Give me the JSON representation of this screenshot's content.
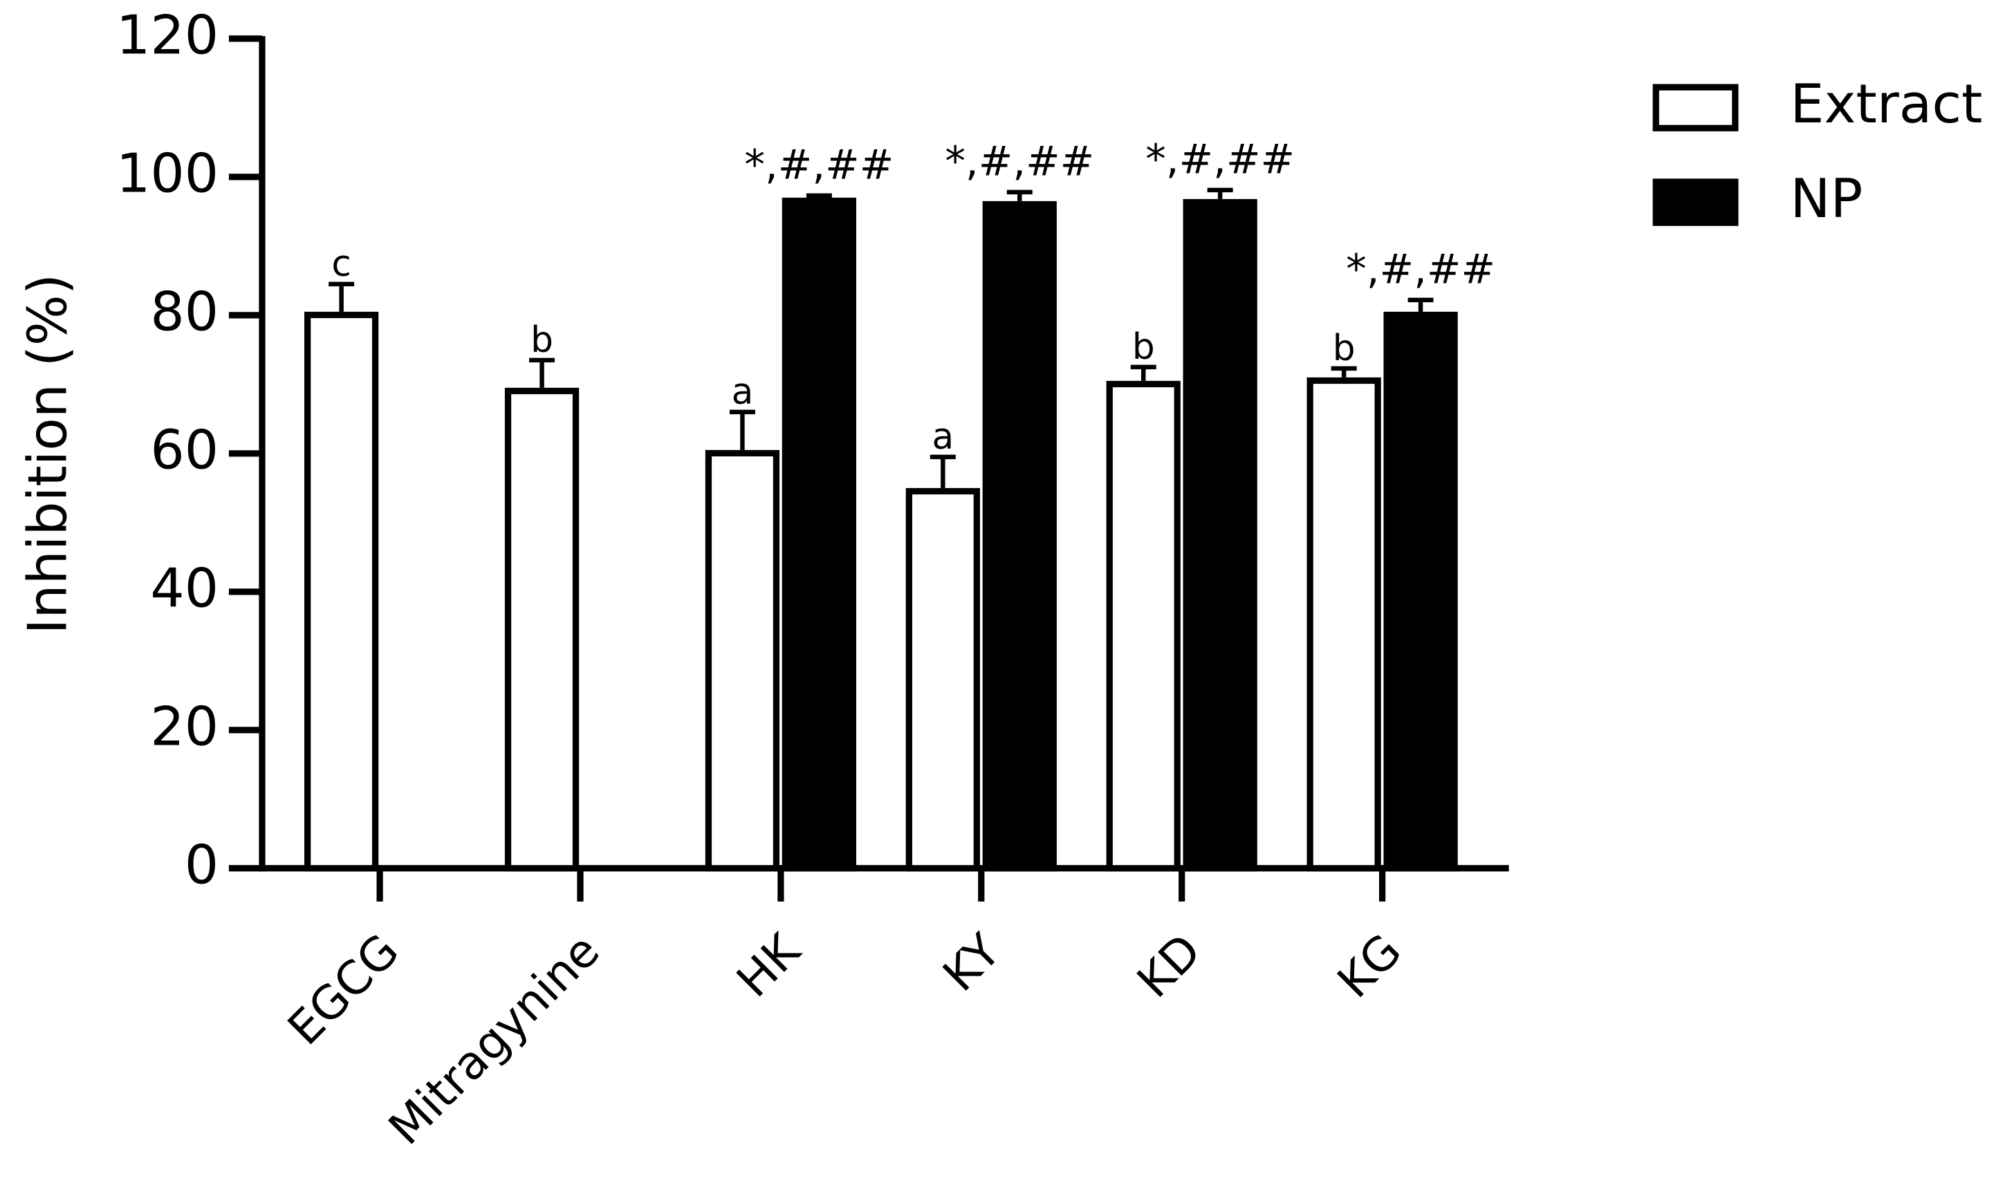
{
  "chart_data": {
    "type": "bar",
    "y_label": "Inhibition (%)",
    "categories": [
      "EGCG",
      "Mitragynine",
      "HK",
      "KY",
      "KD",
      "KG"
    ],
    "series": [
      {
        "name": "Extract",
        "color": "#ffffff",
        "values": [
          80.5,
          69.5,
          60.5,
          55,
          70.5,
          71
        ],
        "errors": [
          4,
          4,
          5.5,
          4.5,
          2,
          1.3
        ],
        "annotations": [
          "c",
          "b",
          "a",
          "a",
          "b",
          "b"
        ]
      },
      {
        "name": "NP",
        "color": "#000000",
        "values": [
          null,
          null,
          97,
          96.5,
          96.8,
          80.5
        ],
        "errors": [
          null,
          null,
          0.3,
          1.3,
          1.3,
          1.7
        ],
        "annotations": [
          null,
          null,
          "*,#,##",
          "*,#,##",
          "*,#,##",
          "*,#,##"
        ]
      }
    ],
    "ylim": [
      0,
      120
    ],
    "yticks": [
      0,
      20,
      40,
      60,
      80,
      100,
      120
    ],
    "grid": false,
    "legend": "upper right"
  }
}
